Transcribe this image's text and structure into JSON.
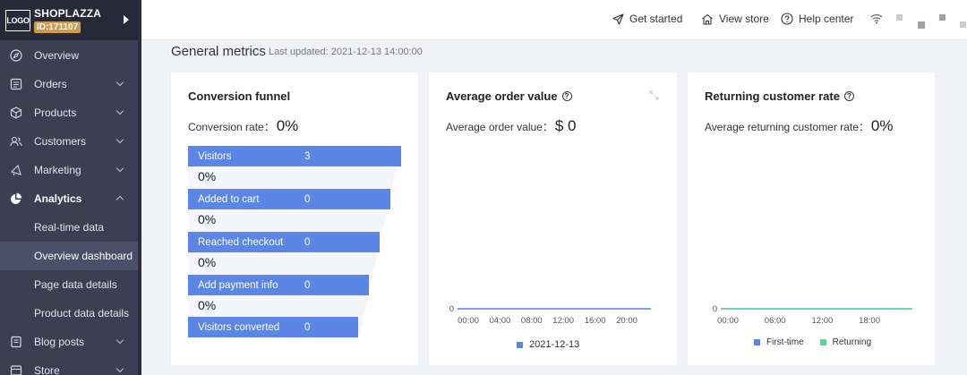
{
  "brand": {
    "logo": "LOGO",
    "name": "SHOPLAZZA",
    "id": "ID:171107"
  },
  "nav": [
    {
      "label": "Overview",
      "icon": "compass-icon",
      "chevron": ""
    },
    {
      "label": "Orders",
      "icon": "orders-icon",
      "chevron": "down"
    },
    {
      "label": "Products",
      "icon": "box-icon",
      "chevron": "down"
    },
    {
      "label": "Customers",
      "icon": "users-icon",
      "chevron": "down"
    },
    {
      "label": "Marketing",
      "icon": "megaphone-icon",
      "chevron": "down"
    },
    {
      "label": "Analytics",
      "icon": "pie-chart-icon",
      "chevron": "up"
    }
  ],
  "analytics_sub": [
    "Real-time data",
    "Overview dashboard",
    "Page data details",
    "Product data details"
  ],
  "nav_after": [
    {
      "label": "Blog posts",
      "icon": "document-icon",
      "chevron": "down"
    },
    {
      "label": "Store",
      "icon": "store-icon",
      "chevron": "down"
    }
  ],
  "topbar": {
    "get_started": "Get started",
    "view_store": "View store",
    "help_center": "Help center"
  },
  "main": {
    "title": "General metrics",
    "last_updated": "Last updated: 2021-12-13 14:00:00"
  },
  "conversion": {
    "title": "Conversion funnel",
    "rate_label": "Conversion rate：",
    "rate_value": "0%",
    "stages": [
      {
        "name": "Visitors",
        "value": "3",
        "pct": "0%"
      },
      {
        "name": "Added to cart",
        "value": "0",
        "pct": "0%"
      },
      {
        "name": "Reached checkout",
        "value": "0",
        "pct": "0%"
      },
      {
        "name": "Add payment info",
        "value": "0",
        "pct": "0%"
      },
      {
        "name": "Visitors converted",
        "value": "0"
      }
    ]
  },
  "aov": {
    "title": "Average order value",
    "label": "Average order value：",
    "value": "$ 0",
    "y_label": "0",
    "x_ticks": [
      "00:00",
      "04:00",
      "08:00",
      "12:00",
      "16:00",
      "20:00"
    ],
    "legend": "2021-12-13",
    "color": "#5b86e5"
  },
  "returning": {
    "title": "Returning customer rate",
    "label": "Average returning customer rate：",
    "value": "0%",
    "y_label": "0",
    "x_ticks": [
      "00:00",
      "06:00",
      "12:00",
      "18:00"
    ],
    "legend_first": "First-time",
    "legend_returning": "Returning",
    "color_first": "#5b86e5",
    "color_returning": "#5fd39a"
  }
}
